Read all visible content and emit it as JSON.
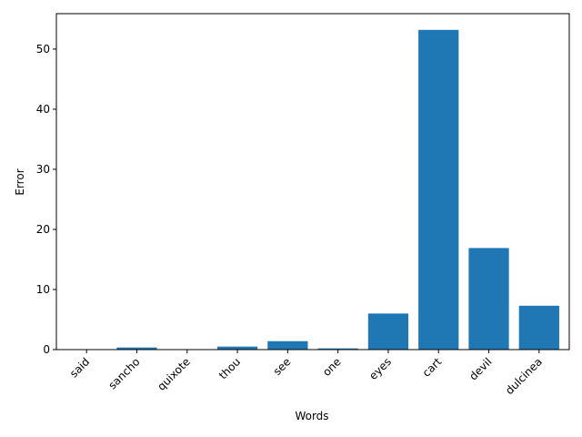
{
  "chart_data": {
    "type": "bar",
    "categories": [
      "said",
      "sancho",
      "quixote",
      "thou",
      "see",
      "one",
      "eyes",
      "cart",
      "devil",
      "dulcinea"
    ],
    "values": [
      0.05,
      0.35,
      0.05,
      0.5,
      1.4,
      0.2,
      6.0,
      53.2,
      16.9,
      7.3
    ],
    "xlabel": "Words",
    "ylabel": "Error",
    "ylim": [
      0,
      55.9
    ],
    "yticks": [
      0,
      10,
      20,
      30,
      40,
      50
    ],
    "bar_color": "#1f77b4",
    "grid": false,
    "legend": "none"
  }
}
